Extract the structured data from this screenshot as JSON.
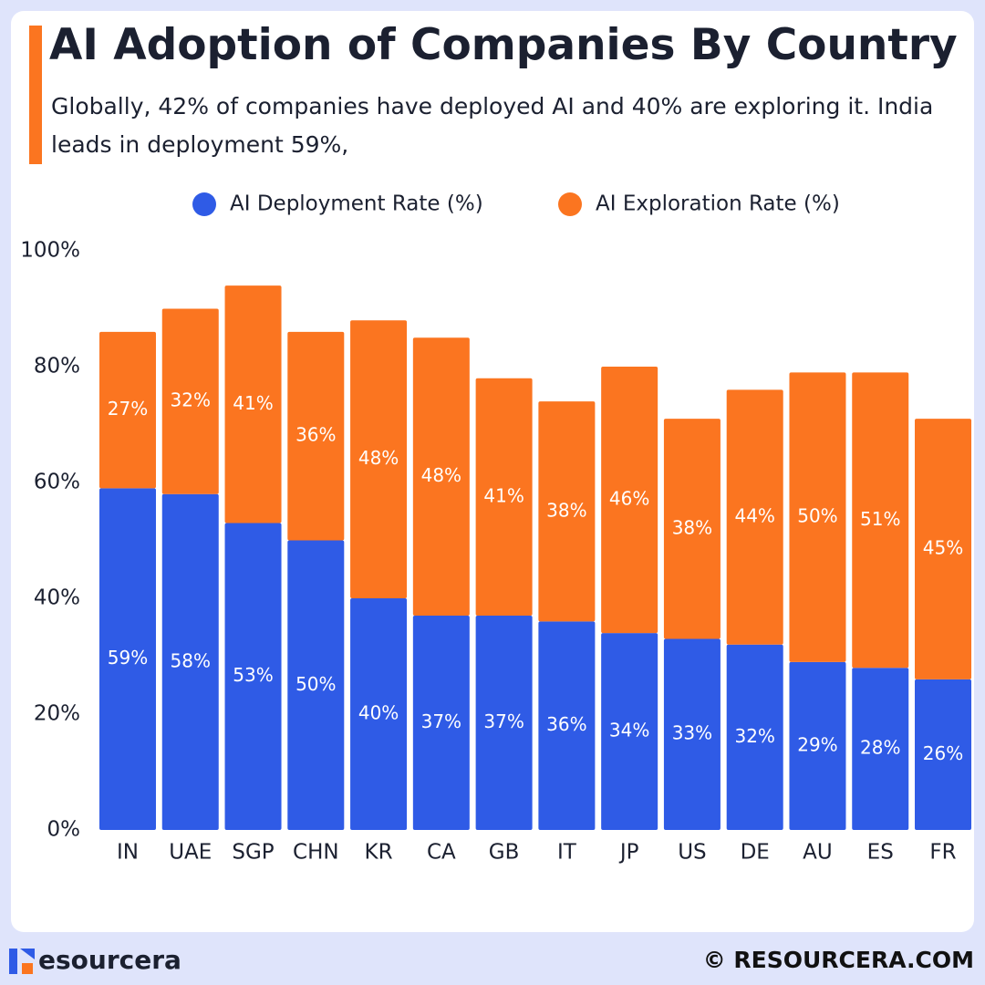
{
  "chart_data": {
    "type": "bar",
    "stacked": true,
    "title": "AI Adoption of Companies By Country",
    "subtitle": "Globally, 42% of companies have deployed AI and 40% are exploring it. India leads in deployment 59%,",
    "categories": [
      "IN",
      "UAE",
      "SGP",
      "CHN",
      "KR",
      "CA",
      "GB",
      "IT",
      "JP",
      "US",
      "DE",
      "AU",
      "ES",
      "FR"
    ],
    "series": [
      {
        "name": "AI Deployment Rate (%)",
        "color": "#2f5be6",
        "values": [
          59,
          58,
          53,
          50,
          40,
          37,
          37,
          36,
          34,
          33,
          32,
          29,
          28,
          26
        ],
        "value_labels": [
          "59%",
          "58%",
          "53%",
          "50%",
          "40%",
          "37%",
          "37%",
          "36%",
          "34%",
          "33%",
          "32%",
          "29%",
          "28%",
          "26%"
        ]
      },
      {
        "name": "AI Exploration Rate (%)",
        "color": "#fb7520",
        "values": [
          27,
          32,
          41,
          36,
          48,
          48,
          41,
          38,
          46,
          38,
          44,
          50,
          51,
          45
        ],
        "value_labels": [
          "27%",
          "32%",
          "41%",
          "36%",
          "48%",
          "48%",
          "41%",
          "38%",
          "46%",
          "38%",
          "44%",
          "50%",
          "51%",
          "45%"
        ]
      }
    ],
    "ylim": [
      0,
      100
    ],
    "yticks": [
      {
        "value": 0,
        "label": "0%"
      },
      {
        "value": 20,
        "label": "20%"
      },
      {
        "value": 40,
        "label": "40%"
      },
      {
        "value": 60,
        "label": "60%"
      },
      {
        "value": 80,
        "label": "80%"
      },
      {
        "value": 100,
        "label": "100%"
      }
    ],
    "grid": false
  },
  "footer": {
    "brand": "esourcera",
    "copyright": "© RESOURCERA.COM"
  }
}
